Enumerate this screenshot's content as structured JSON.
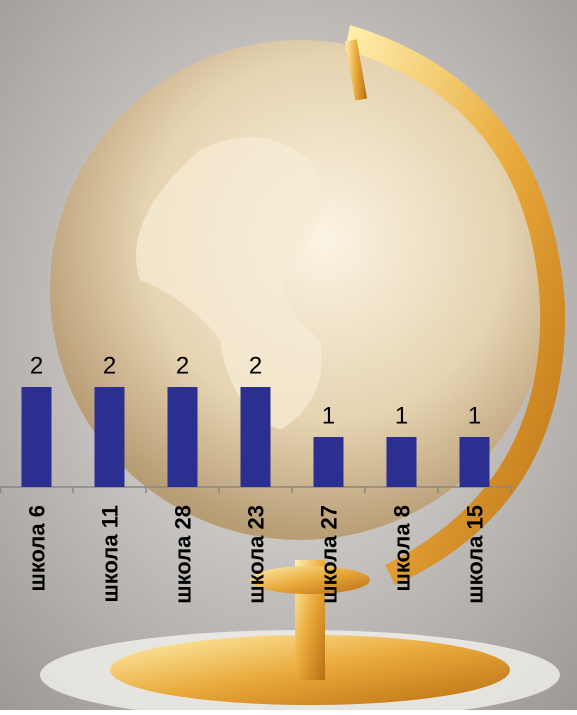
{
  "chart_data": {
    "type": "bar",
    "categories": [
      "школа 6",
      "школа 11",
      "школа 28",
      "школа 23",
      "школа 27",
      "школа 8",
      "школа 15"
    ],
    "values": [
      2,
      2,
      2,
      2,
      1,
      1,
      1
    ],
    "color": "#2b2f90"
  }
}
